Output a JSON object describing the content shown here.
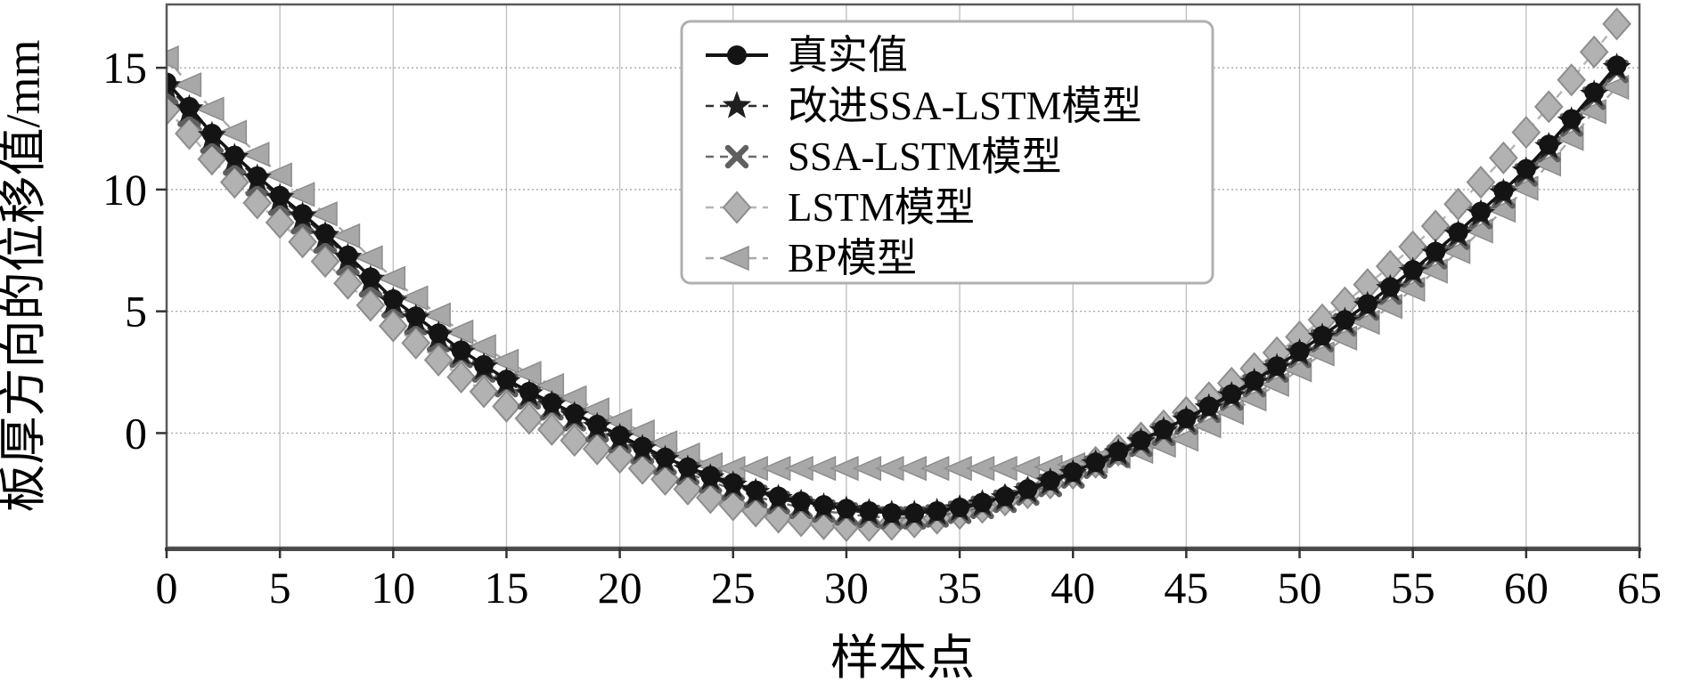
{
  "chart_data": {
    "type": "line",
    "title": "",
    "xlabel": "样本点",
    "ylabel": "板厚方向的位移值/mm",
    "xlim": [
      0,
      65
    ],
    "ylim": [
      -4.7,
      17.6
    ],
    "xticks": [
      0,
      5,
      10,
      15,
      20,
      25,
      30,
      35,
      40,
      45,
      50,
      55,
      60,
      65
    ],
    "yticks": [
      0,
      5,
      10,
      15
    ],
    "grid": true,
    "legend_position": "top-center-inside",
    "colors": {
      "true_value": "#141414",
      "improved_ssa_lstm": "#2e2e2e",
      "ssa_lstm": "#6a6a6a",
      "lstm": "#b5b5b5",
      "bp": "#a8a8a8",
      "grid_h": "#9c9c9c",
      "grid_v": "#c2c2c2",
      "border": "#5a5a5a",
      "legend_border": "#b0b0b0"
    },
    "x": [
      0,
      1,
      2,
      3,
      4,
      5,
      6,
      7,
      8,
      9,
      10,
      11,
      12,
      13,
      14,
      15,
      16,
      17,
      18,
      19,
      20,
      21,
      22,
      23,
      24,
      25,
      26,
      27,
      28,
      29,
      30,
      31,
      32,
      33,
      34,
      35,
      36,
      37,
      38,
      39,
      40,
      41,
      42,
      43,
      44,
      45,
      46,
      47,
      48,
      49,
      50,
      51,
      52,
      53,
      54,
      55,
      56,
      57,
      58,
      59,
      60,
      61,
      62,
      63,
      64
    ],
    "series": [
      {
        "key": "true-value",
        "name": "真实值",
        "marker": "circle",
        "line": "solid",
        "color": "#141414",
        "values": [
          14.4,
          13.4,
          12.3,
          11.4,
          10.55,
          9.75,
          9.0,
          8.2,
          7.3,
          6.4,
          5.5,
          4.8,
          4.1,
          3.4,
          2.8,
          2.2,
          1.7,
          1.25,
          0.8,
          0.35,
          -0.1,
          -0.55,
          -1.0,
          -1.4,
          -1.75,
          -2.05,
          -2.35,
          -2.6,
          -2.8,
          -2.95,
          -3.1,
          -3.2,
          -3.28,
          -3.28,
          -3.2,
          -3.05,
          -2.85,
          -2.6,
          -2.3,
          -1.95,
          -1.6,
          -1.2,
          -0.75,
          -0.3,
          0.15,
          0.6,
          1.1,
          1.6,
          2.15,
          2.75,
          3.35,
          4.0,
          4.65,
          5.3,
          6.0,
          6.7,
          7.45,
          8.25,
          9.1,
          9.95,
          10.85,
          11.85,
          12.9,
          14.0,
          15.1
        ]
      },
      {
        "key": "improved-ssa-lstm",
        "name": "改进SSA-LSTM模型",
        "marker": "star",
        "line": "dashed",
        "color": "#2e2e2e",
        "values": [
          14.25,
          13.3,
          12.2,
          11.3,
          10.45,
          9.65,
          8.9,
          8.1,
          7.2,
          6.3,
          5.4,
          4.7,
          4.0,
          3.3,
          2.7,
          2.1,
          1.6,
          1.15,
          0.7,
          0.25,
          -0.2,
          -0.65,
          -1.1,
          -1.5,
          -1.85,
          -2.15,
          -2.45,
          -2.7,
          -2.9,
          -3.05,
          -3.18,
          -3.28,
          -3.35,
          -3.35,
          -3.27,
          -3.12,
          -2.92,
          -2.67,
          -2.37,
          -2.02,
          -1.67,
          -1.27,
          -0.82,
          -0.37,
          0.08,
          0.53,
          1.02,
          1.52,
          2.07,
          2.67,
          3.28,
          3.92,
          4.57,
          5.22,
          5.92,
          6.62,
          7.37,
          8.15,
          9.0,
          9.85,
          10.75,
          11.75,
          12.8,
          13.9,
          15.0
        ]
      },
      {
        "key": "ssa-lstm",
        "name": "SSA-LSTM模型",
        "marker": "x",
        "line": "dashed",
        "color": "#6a6a6a",
        "values": [
          13.95,
          13.05,
          11.95,
          11.05,
          10.2,
          9.4,
          8.65,
          7.85,
          6.95,
          6.05,
          5.2,
          4.5,
          3.8,
          3.15,
          2.55,
          1.95,
          1.45,
          1.0,
          0.55,
          0.1,
          -0.35,
          -0.8,
          -1.25,
          -1.65,
          -2.0,
          -2.3,
          -2.6,
          -2.85,
          -3.05,
          -3.2,
          -3.32,
          -3.42,
          -3.48,
          -3.48,
          -3.4,
          -3.25,
          -3.05,
          -2.8,
          -2.5,
          -2.15,
          -1.8,
          -1.4,
          -0.95,
          -0.5,
          -0.05,
          0.4,
          0.9,
          1.4,
          1.95,
          2.55,
          3.15,
          3.8,
          4.45,
          5.1,
          5.75,
          6.45,
          7.2,
          8.0,
          8.85,
          9.7,
          10.6,
          11.6,
          12.65,
          13.75,
          14.85
        ]
      },
      {
        "key": "lstm",
        "name": "LSTM模型",
        "marker": "diamond",
        "line": "dashed",
        "color": "#b5b5b5",
        "values": [
          13.3,
          12.3,
          11.25,
          10.3,
          9.45,
          8.65,
          7.85,
          7.05,
          6.15,
          5.25,
          4.4,
          3.7,
          3.0,
          2.3,
          1.7,
          1.1,
          0.6,
          0.15,
          -0.3,
          -0.65,
          -1.0,
          -1.45,
          -1.9,
          -2.3,
          -2.65,
          -2.95,
          -3.2,
          -3.45,
          -3.6,
          -3.72,
          -3.8,
          -3.8,
          -3.75,
          -3.65,
          -3.5,
          -3.3,
          -3.05,
          -2.75,
          -2.45,
          -2.05,
          -1.65,
          -1.2,
          -0.7,
          -0.2,
          0.3,
          0.85,
          1.45,
          2.05,
          2.65,
          3.3,
          3.95,
          4.65,
          5.35,
          6.1,
          6.85,
          7.65,
          8.5,
          9.4,
          10.3,
          11.3,
          12.35,
          13.4,
          14.5,
          15.65,
          16.8
        ]
      },
      {
        "key": "bp",
        "name": "BP模型",
        "marker": "triangle-left",
        "line": "dashed",
        "color": "#a8a8a8",
        "values": [
          15.4,
          14.3,
          13.3,
          12.35,
          11.45,
          10.6,
          9.8,
          9.0,
          8.1,
          7.2,
          6.35,
          5.55,
          4.85,
          4.15,
          3.55,
          2.95,
          2.45,
          1.95,
          1.45,
          0.95,
          0.5,
          0.05,
          -0.4,
          -0.9,
          -1.3,
          -1.45,
          -1.45,
          -1.45,
          -1.45,
          -1.45,
          -1.45,
          -1.45,
          -1.45,
          -1.45,
          -1.45,
          -1.45,
          -1.45,
          -1.45,
          -1.45,
          -1.4,
          -1.3,
          -1.15,
          -0.95,
          -0.75,
          -0.5,
          -0.25,
          0.3,
          0.85,
          1.4,
          2.0,
          2.6,
          3.25,
          3.9,
          4.55,
          5.2,
          5.9,
          6.65,
          7.45,
          8.3,
          9.15,
          10.05,
          11.05,
          12.1,
          13.2,
          14.2
        ]
      }
    ]
  }
}
